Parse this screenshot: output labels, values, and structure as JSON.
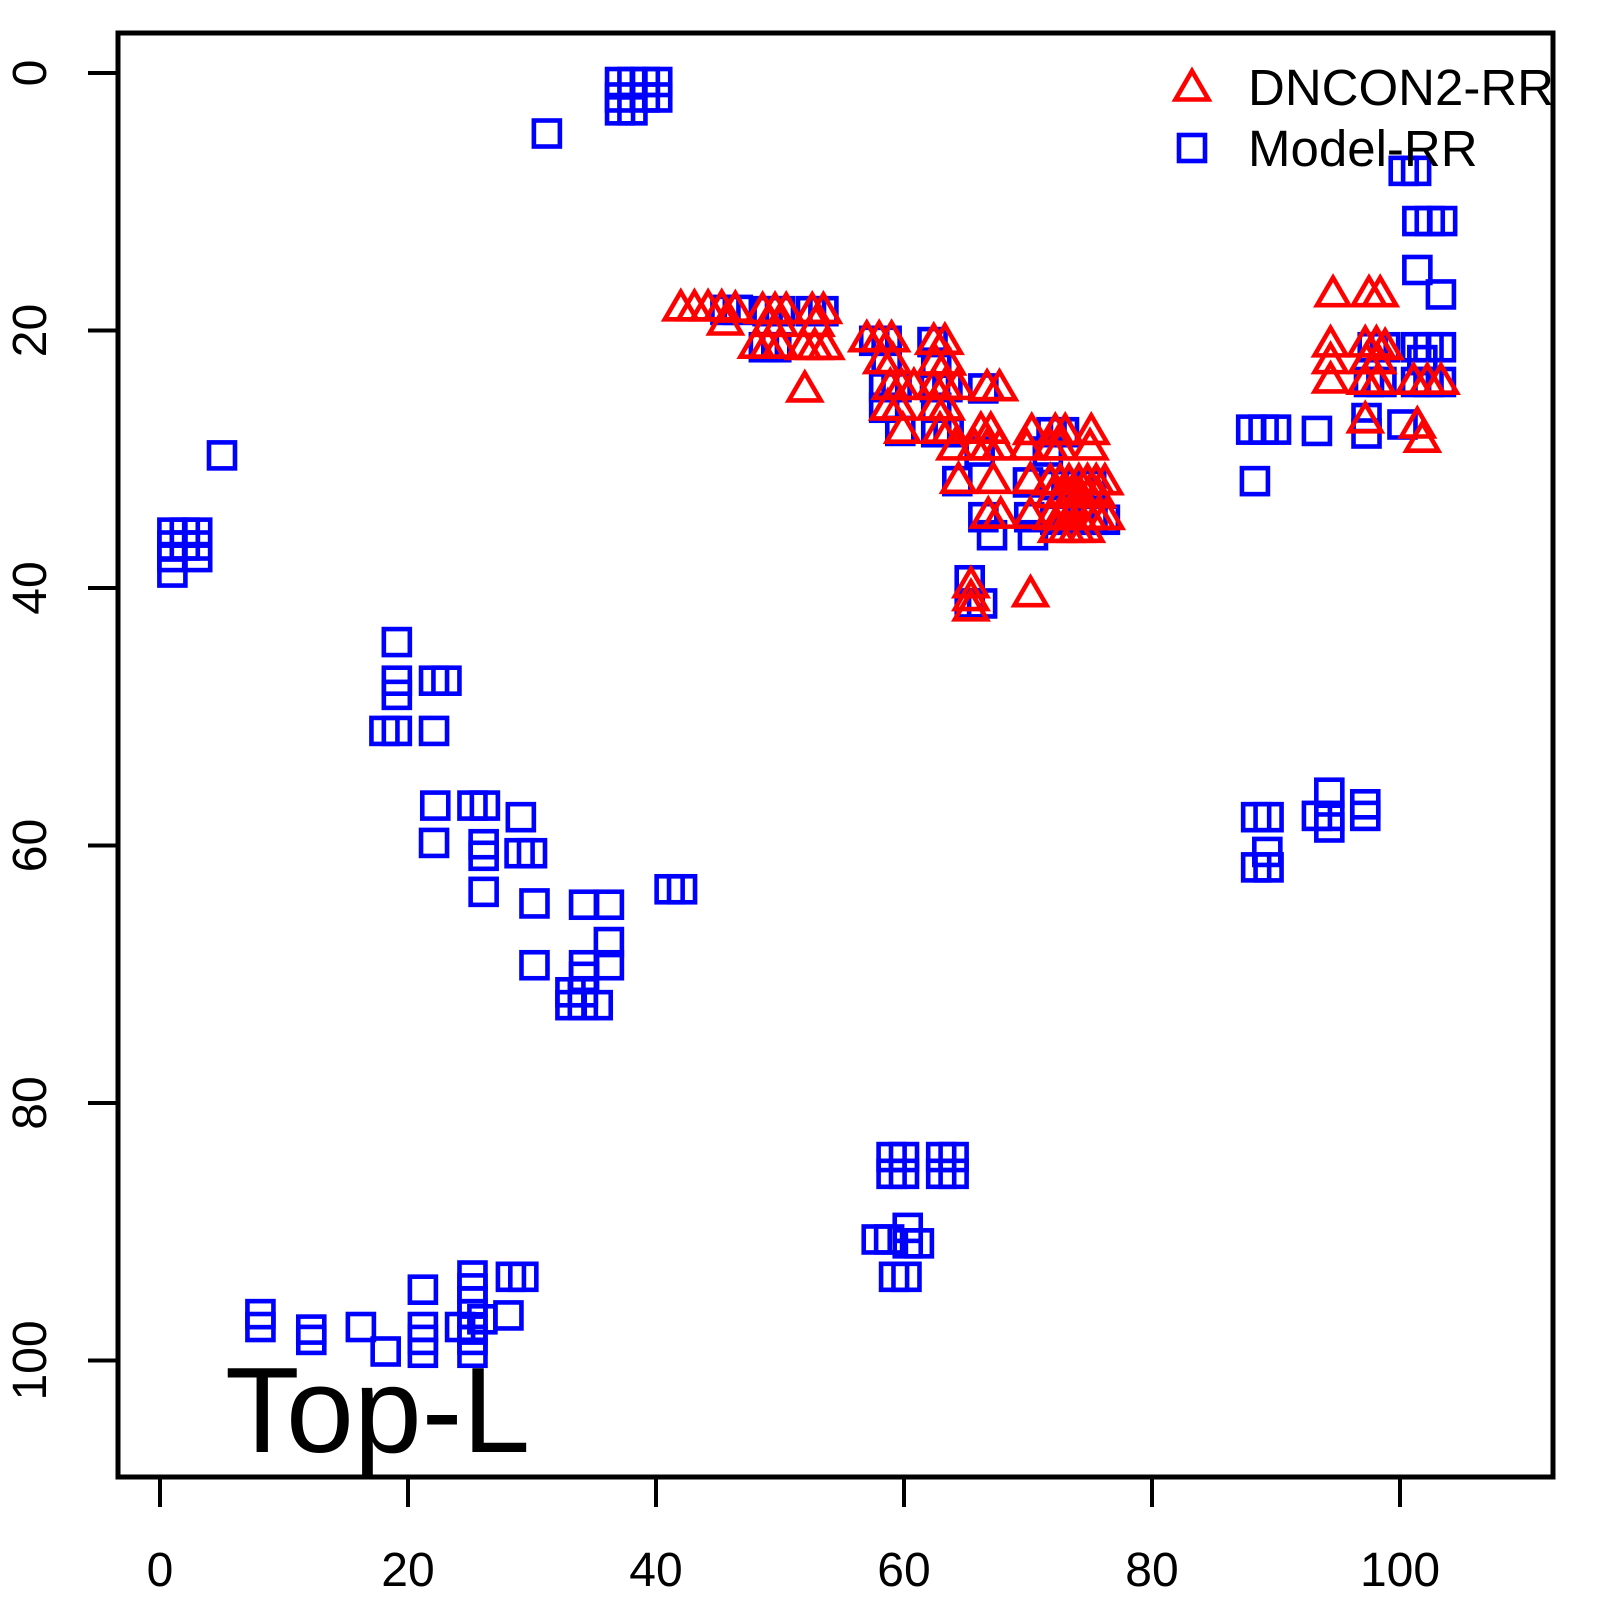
{
  "legend": {
    "items": [
      {
        "label": "DNCON2-RR",
        "marker": "triangle-icon",
        "color": "#FF0000"
      },
      {
        "label": "Model-RR",
        "marker": "square-icon",
        "color": "#0000FF"
      }
    ]
  },
  "annotation": {
    "label": "Top-L"
  },
  "axes": {
    "x": {
      "tick_labels": [
        "0",
        "20",
        "40",
        "60",
        "80",
        "100"
      ],
      "tick_values": [
        0,
        20,
        40,
        60,
        80,
        100
      ]
    },
    "y": {
      "tick_labels": [
        "0",
        "20",
        "40",
        "60",
        "80",
        "100"
      ],
      "tick_values": [
        0,
        20,
        40,
        60,
        80,
        100
      ]
    }
  },
  "colors": {
    "dncon2": "#FF0000",
    "model": "#0000FF",
    "axis": "#000000"
  },
  "chart_data": {
    "type": "scatter",
    "title": "",
    "xlabel": "",
    "ylabel": "",
    "x_range": [
      -3.4,
      112.3
    ],
    "y_range": [
      109.0,
      -3.1
    ],
    "y_axis_inverted": true,
    "grid": false,
    "legend_position": "top-right",
    "series": [
      {
        "name": "DNCON2-RR",
        "marker": "triangle",
        "color": "#FF0000",
        "points": [
          [
            42.0,
            18.2
          ],
          [
            43.1,
            18.2
          ],
          [
            44.2,
            18.2
          ],
          [
            45.3,
            18.2
          ],
          [
            46.4,
            18.3
          ],
          [
            48.6,
            18.4
          ],
          [
            49.6,
            18.4
          ],
          [
            50.5,
            18.4
          ],
          [
            52.6,
            18.4
          ],
          [
            53.5,
            18.4
          ],
          [
            45.6,
            19.3
          ],
          [
            49.1,
            19.4
          ],
          [
            50.0,
            19.4
          ],
          [
            52.9,
            19.4
          ],
          [
            48.1,
            21.1
          ],
          [
            49.0,
            21.1
          ],
          [
            50.0,
            21.1
          ],
          [
            51.9,
            21.2
          ],
          [
            52.8,
            21.2
          ],
          [
            53.7,
            21.2
          ],
          [
            57.0,
            20.6
          ],
          [
            58.0,
            20.6
          ],
          [
            59.0,
            20.6
          ],
          [
            62.4,
            20.8
          ],
          [
            63.3,
            20.8
          ],
          [
            58.2,
            22.3
          ],
          [
            59.1,
            22.3
          ],
          [
            62.5,
            22.4
          ],
          [
            63.5,
            22.4
          ],
          [
            52.0,
            24.5
          ],
          [
            58.9,
            24.3
          ],
          [
            59.8,
            24.3
          ],
          [
            60.8,
            24.3
          ],
          [
            62.4,
            24.3
          ],
          [
            63.3,
            24.3
          ],
          [
            64.3,
            24.3
          ],
          [
            66.7,
            24.4
          ],
          [
            67.7,
            24.4
          ],
          [
            58.7,
            25.9
          ],
          [
            59.6,
            25.9
          ],
          [
            62.5,
            25.9
          ],
          [
            63.4,
            25.9
          ],
          [
            59.9,
            27.7
          ],
          [
            62.9,
            27.7
          ],
          [
            63.7,
            27.7
          ],
          [
            66.2,
            27.7
          ],
          [
            67.0,
            27.7
          ],
          [
            70.3,
            27.8
          ],
          [
            72.2,
            27.8
          ],
          [
            73.0,
            27.8
          ],
          [
            75.1,
            27.8
          ],
          [
            64.1,
            29.0
          ],
          [
            65.7,
            29.0
          ],
          [
            66.7,
            29.0
          ],
          [
            67.7,
            29.0
          ],
          [
            69.9,
            29.0
          ],
          [
            71.8,
            29.0
          ],
          [
            72.6,
            29.0
          ],
          [
            75.0,
            29.0
          ],
          [
            64.4,
            31.6
          ],
          [
            67.2,
            31.6
          ],
          [
            70.2,
            31.6
          ],
          [
            71.8,
            31.7
          ],
          [
            72.6,
            31.7
          ],
          [
            73.3,
            31.7
          ],
          [
            74.1,
            31.7
          ],
          [
            74.8,
            31.7
          ],
          [
            75.5,
            31.7
          ],
          [
            76.2,
            31.7
          ],
          [
            72.0,
            32.7
          ],
          [
            72.8,
            32.7
          ],
          [
            73.5,
            32.7
          ],
          [
            74.2,
            32.7
          ],
          [
            74.9,
            32.7
          ],
          [
            75.6,
            32.7
          ],
          [
            66.8,
            34.3
          ],
          [
            67.8,
            34.3
          ],
          [
            70.2,
            34.3
          ],
          [
            71.9,
            34.4
          ],
          [
            72.6,
            34.4
          ],
          [
            73.4,
            34.4
          ],
          [
            74.1,
            34.4
          ],
          [
            74.9,
            34.4
          ],
          [
            75.6,
            34.4
          ],
          [
            76.3,
            34.4
          ],
          [
            72.3,
            35.4
          ],
          [
            73.1,
            35.4
          ],
          [
            73.9,
            35.4
          ],
          [
            74.7,
            35.4
          ],
          [
            65.4,
            39.7
          ],
          [
            65.4,
            40.7
          ],
          [
            65.4,
            41.5
          ],
          [
            70.2,
            40.4
          ],
          [
            94.6,
            17.1
          ],
          [
            97.5,
            17.1
          ],
          [
            98.4,
            17.1
          ],
          [
            94.4,
            21.0
          ],
          [
            97.2,
            21.0
          ],
          [
            98.1,
            21.0
          ],
          [
            98.8,
            21.2
          ],
          [
            94.4,
            22.3
          ],
          [
            97.3,
            22.3
          ],
          [
            98.2,
            22.3
          ],
          [
            94.4,
            23.8
          ],
          [
            97.2,
            23.9
          ],
          [
            98.2,
            23.9
          ],
          [
            101.1,
            23.9
          ],
          [
            102.2,
            23.9
          ],
          [
            103.3,
            23.9
          ],
          [
            97.2,
            26.9
          ],
          [
            101.4,
            27.3
          ],
          [
            101.8,
            28.4
          ]
        ]
      },
      {
        "name": "Model-RR",
        "marker": "square",
        "color": "#0000FF",
        "points": [
          [
            37.1,
            0.7
          ],
          [
            38.1,
            0.7
          ],
          [
            39.1,
            0.7
          ],
          [
            40.1,
            0.7
          ],
          [
            37.1,
            1.9
          ],
          [
            39.1,
            1.9
          ],
          [
            40.1,
            1.9
          ],
          [
            37.1,
            2.9
          ],
          [
            38.1,
            2.9
          ],
          [
            31.2,
            4.7
          ],
          [
            100.3,
            7.6
          ],
          [
            101.3,
            7.6
          ],
          [
            101.4,
            11.5
          ],
          [
            102.4,
            11.5
          ],
          [
            103.4,
            11.5
          ],
          [
            101.4,
            15.3
          ],
          [
            103.3,
            17.2
          ],
          [
            45.6,
            18.4
          ],
          [
            46.6,
            18.4
          ],
          [
            49.0,
            18.5
          ],
          [
            50.0,
            18.5
          ],
          [
            52.5,
            18.5
          ],
          [
            53.5,
            18.5
          ],
          [
            48.7,
            21.3
          ],
          [
            49.7,
            21.3
          ],
          [
            57.6,
            20.8
          ],
          [
            58.6,
            20.8
          ],
          [
            62.3,
            20.9
          ],
          [
            58.6,
            22.4
          ],
          [
            62.6,
            22.5
          ],
          [
            58.4,
            24.4
          ],
          [
            59.4,
            24.4
          ],
          [
            62.5,
            24.4
          ],
          [
            63.5,
            24.4
          ],
          [
            66.4,
            24.5
          ],
          [
            58.4,
            26.0
          ],
          [
            62.6,
            26.0
          ],
          [
            59.7,
            27.8
          ],
          [
            62.6,
            27.9
          ],
          [
            63.6,
            27.9
          ],
          [
            71.9,
            27.9
          ],
          [
            72.9,
            27.9
          ],
          [
            66.1,
            29.4
          ],
          [
            71.6,
            29.4
          ],
          [
            64.3,
            31.7
          ],
          [
            70.0,
            31.8
          ],
          [
            72.1,
            32.0
          ],
          [
            73.1,
            32.0
          ],
          [
            74.1,
            32.0
          ],
          [
            75.1,
            32.0
          ],
          [
            66.4,
            34.5
          ],
          [
            70.1,
            34.5
          ],
          [
            72.2,
            34.7
          ],
          [
            73.2,
            34.7
          ],
          [
            74.2,
            34.7
          ],
          [
            75.2,
            34.7
          ],
          [
            76.2,
            34.7
          ],
          [
            67.1,
            35.9
          ],
          [
            70.4,
            35.9
          ],
          [
            65.3,
            39.4
          ],
          [
            65.3,
            41.2
          ],
          [
            66.3,
            41.2
          ],
          [
            88.0,
            27.7
          ],
          [
            89.0,
            27.7
          ],
          [
            90.0,
            27.7
          ],
          [
            93.3,
            27.8
          ],
          [
            97.3,
            26.8
          ],
          [
            97.3,
            28.0
          ],
          [
            100.2,
            27.3
          ],
          [
            88.3,
            31.7
          ],
          [
            97.8,
            21.3
          ],
          [
            98.8,
            21.3
          ],
          [
            101.3,
            21.3
          ],
          [
            102.3,
            21.3
          ],
          [
            103.3,
            21.3
          ],
          [
            101.8,
            22.3
          ],
          [
            97.5,
            24.0
          ],
          [
            98.5,
            24.0
          ],
          [
            101.3,
            24.0
          ],
          [
            102.3,
            24.0
          ],
          [
            103.3,
            24.0
          ],
          [
            19.1,
            44.2
          ],
          [
            19.1,
            47.2
          ],
          [
            19.1,
            48.3
          ],
          [
            22.1,
            47.2
          ],
          [
            23.1,
            47.2
          ],
          [
            18.1,
            51.1
          ],
          [
            19.1,
            51.1
          ],
          [
            22.1,
            51.1
          ],
          [
            22.2,
            56.9
          ],
          [
            25.2,
            56.9
          ],
          [
            26.2,
            56.9
          ],
          [
            29.1,
            57.8
          ],
          [
            22.1,
            59.8
          ],
          [
            26.1,
            59.9
          ],
          [
            26.1,
            60.8
          ],
          [
            29.0,
            60.6
          ],
          [
            30.0,
            60.6
          ],
          [
            26.1,
            63.6
          ],
          [
            30.2,
            64.5
          ],
          [
            34.2,
            64.6
          ],
          [
            36.2,
            64.6
          ],
          [
            41.1,
            63.4
          ],
          [
            42.1,
            63.4
          ],
          [
            36.2,
            67.5
          ],
          [
            30.2,
            69.3
          ],
          [
            34.2,
            69.3
          ],
          [
            36.2,
            69.3
          ],
          [
            34.2,
            70.2
          ],
          [
            33.1,
            71.4
          ],
          [
            34.1,
            71.4
          ],
          [
            33.1,
            72.4
          ],
          [
            34.1,
            72.4
          ],
          [
            35.3,
            72.4
          ],
          [
            5.0,
            29.7
          ],
          [
            1.0,
            35.7
          ],
          [
            2.0,
            35.7
          ],
          [
            3.0,
            35.7
          ],
          [
            1.0,
            36.7
          ],
          [
            2.0,
            36.7
          ],
          [
            3.0,
            36.7
          ],
          [
            1.0,
            37.6
          ],
          [
            3.0,
            37.6
          ],
          [
            1.0,
            38.8
          ],
          [
            88.4,
            57.8
          ],
          [
            89.4,
            57.8
          ],
          [
            94.3,
            55.9
          ],
          [
            93.3,
            57.7
          ],
          [
            94.3,
            57.7
          ],
          [
            94.3,
            58.6
          ],
          [
            97.2,
            56.8
          ],
          [
            97.2,
            57.7
          ],
          [
            89.3,
            60.5
          ],
          [
            88.4,
            61.7
          ],
          [
            89.4,
            61.7
          ],
          [
            59.0,
            84.2
          ],
          [
            60.0,
            84.2
          ],
          [
            59.0,
            85.5
          ],
          [
            60.0,
            85.5
          ],
          [
            63.0,
            84.2
          ],
          [
            64.0,
            84.2
          ],
          [
            63.0,
            85.5
          ],
          [
            64.0,
            85.5
          ],
          [
            60.3,
            89.7
          ],
          [
            57.8,
            90.6
          ],
          [
            58.8,
            90.6
          ],
          [
            60.3,
            90.9
          ],
          [
            61.2,
            90.9
          ],
          [
            59.2,
            93.5
          ],
          [
            60.2,
            93.5
          ],
          [
            8.1,
            96.4
          ],
          [
            8.1,
            97.4
          ],
          [
            12.2,
            97.6
          ],
          [
            12.2,
            98.4
          ],
          [
            16.2,
            97.4
          ],
          [
            18.2,
            99.3
          ],
          [
            21.2,
            94.5
          ],
          [
            21.2,
            97.4
          ],
          [
            21.2,
            98.4
          ],
          [
            21.2,
            99.4
          ],
          [
            24.2,
            97.4
          ],
          [
            26.0,
            96.8
          ],
          [
            25.2,
            93.4
          ],
          [
            25.2,
            94.4
          ],
          [
            25.2,
            95.4
          ],
          [
            25.2,
            96.4
          ],
          [
            25.2,
            97.6
          ],
          [
            25.2,
            98.4
          ],
          [
            25.2,
            99.4
          ],
          [
            28.3,
            93.5
          ],
          [
            29.3,
            93.5
          ],
          [
            28.1,
            96.5
          ]
        ]
      }
    ]
  }
}
